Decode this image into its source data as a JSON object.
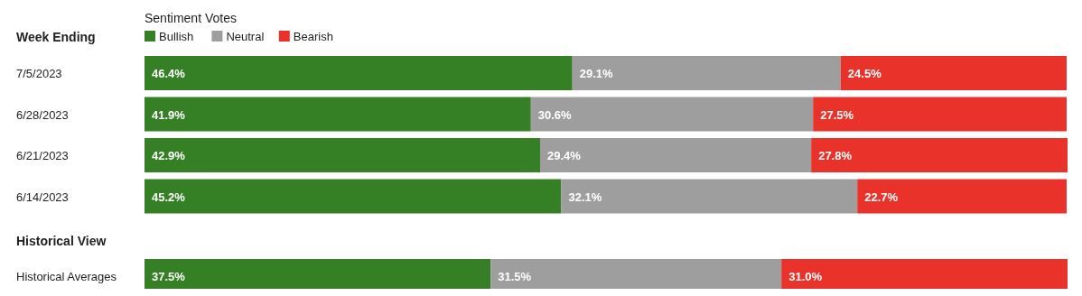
{
  "chart_data": [
    {
      "type": "bar",
      "orientation": "horizontal",
      "stacked": true,
      "ylabel": "Week Ending",
      "legend_title": "Sentiment Votes",
      "legend": "top left",
      "categories": [
        "7/5/2023",
        "6/28/2023",
        "6/21/2023",
        "6/14/2023"
      ],
      "series": [
        {
          "name": "Bullish",
          "color": "#357f25",
          "values": [
            46.4,
            41.9,
            42.9,
            45.2
          ],
          "value_labels": [
            "46.4%",
            "41.9%",
            "42.9%",
            "45.2%"
          ]
        },
        {
          "name": "Neutral",
          "color": "#9e9e9e",
          "values": [
            29.1,
            30.6,
            29.4,
            32.1
          ],
          "value_labels": [
            "29.1%",
            "30.6%",
            "29.4%",
            "32.1%"
          ]
        },
        {
          "name": "Bearish",
          "color": "#e8322a",
          "values": [
            24.5,
            27.5,
            27.8,
            22.7
          ],
          "value_labels": [
            "24.5%",
            "27.5%",
            "27.8%",
            "22.7%"
          ]
        }
      ]
    },
    {
      "type": "bar",
      "orientation": "horizontal",
      "stacked": true,
      "ylabel": "Historical View",
      "legend": false,
      "categories": [
        "Historical Averages"
      ],
      "series": [
        {
          "color": "#357f25",
          "values": [
            37.5
          ],
          "value_labels": [
            "37.5%"
          ]
        },
        {
          "color": "#9e9e9e",
          "values": [
            31.5
          ],
          "value_labels": [
            "31.5%"
          ]
        },
        {
          "color": "#e8322a",
          "values": [
            31.0
          ],
          "value_labels": [
            "31.0%"
          ]
        }
      ]
    }
  ]
}
